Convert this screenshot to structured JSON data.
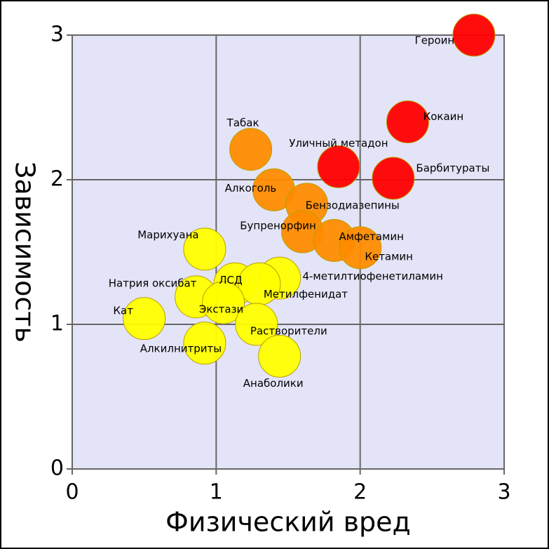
{
  "chart_data": {
    "type": "scatter",
    "xlabel": "Физический вред",
    "ylabel": "Зависимость",
    "xlim": [
      0,
      3
    ],
    "ylim": [
      0,
      3
    ],
    "xticks": [
      0,
      1,
      2,
      3
    ],
    "yticks": [
      0,
      1,
      2,
      3
    ],
    "grid": true,
    "labels": [
      "Героин",
      "Кокаин",
      "Барбитураты",
      "Уличный метадон",
      "Табак",
      "Алкоголь",
      "Бензодиазепины",
      "Бупренорфин",
      "Амфетамин",
      "Кетамин",
      "Марихуана",
      "4-метилтиофенетиламин",
      "ЛСД",
      "Метилфенидат",
      "Натрия оксибат",
      "Экстази",
      "Растворители",
      "Кат",
      "Алкилнитриты",
      "Анаболики"
    ],
    "x": [
      2.79,
      2.33,
      2.23,
      1.85,
      1.24,
      1.4,
      1.63,
      1.6,
      1.82,
      2.0,
      0.92,
      1.44,
      1.13,
      1.3,
      0.86,
      1.05,
      1.28,
      0.5,
      0.92,
      1.44
    ],
    "y": [
      3.0,
      2.4,
      2.01,
      2.09,
      2.21,
      1.93,
      1.83,
      1.64,
      1.58,
      1.53,
      1.52,
      1.32,
      1.28,
      1.28,
      1.19,
      1.15,
      1.0,
      1.04,
      0.87,
      0.78
    ],
    "colors": [
      "#ff0000",
      "#ff0000",
      "#ff0000",
      "#ff0000",
      "#ff8c00",
      "#ff8c00",
      "#ff8c00",
      "#ff8c00",
      "#ff8c00",
      "#ff8c00",
      "#ffff00",
      "#ffff00",
      "#ffff00",
      "#ffff00",
      "#ffff00",
      "#ffff00",
      "#ffff00",
      "#ffff00",
      "#ffff00",
      "#ffff00"
    ]
  }
}
